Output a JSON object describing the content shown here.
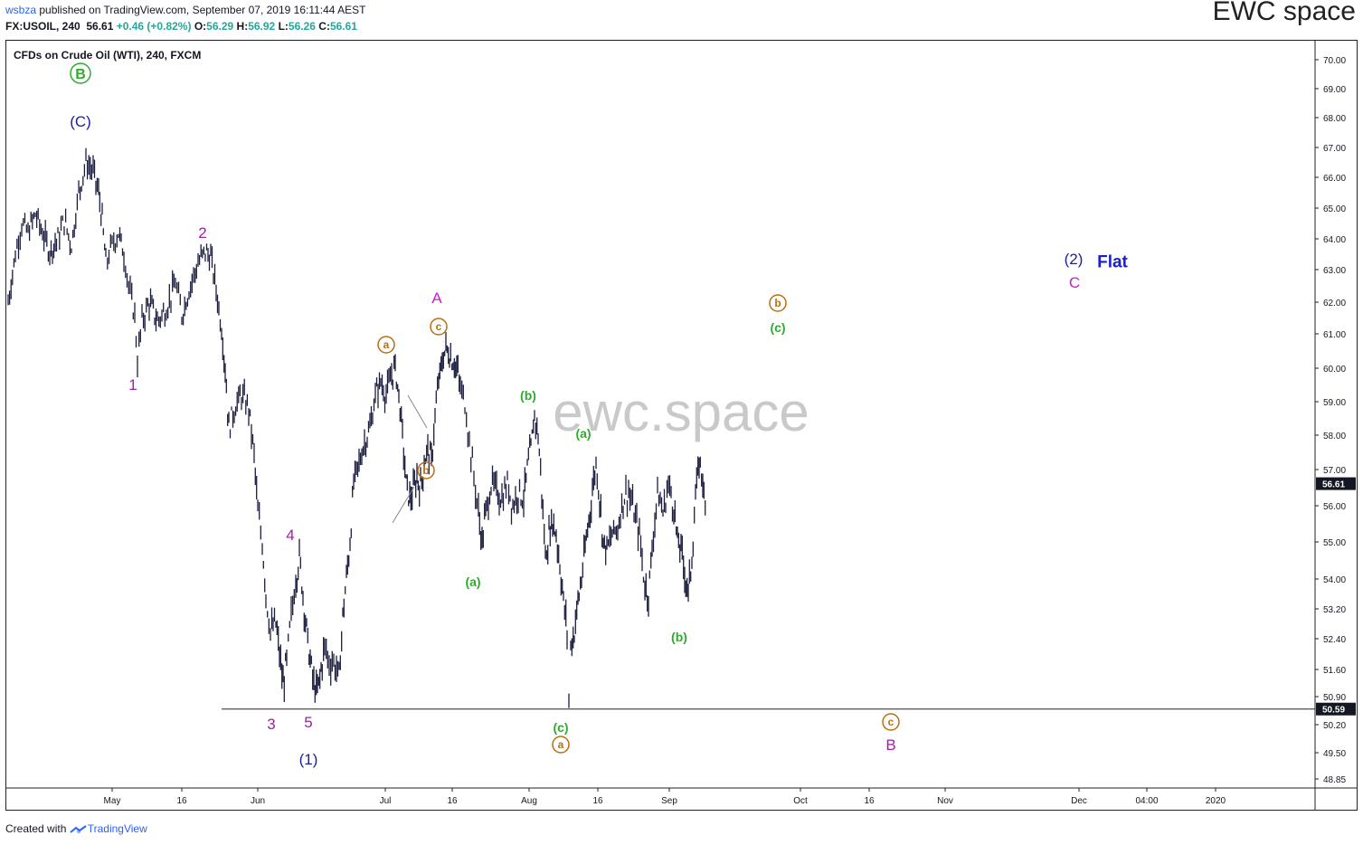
{
  "header": {
    "author": "wsbza",
    "published_text": " published on TradingView.com, September 07, 2019 16:11:44 AEST",
    "symbol_line": "FX:USOIL, 240",
    "last": "56.61",
    "change": "+0.46 (+0.82%)",
    "o_label": "O:",
    "o_value": "56.29",
    "h_label": "H:",
    "h_value": "56.92",
    "l_label": "L:",
    "l_value": "56.26",
    "c_label": "C:",
    "c_value": "56.61"
  },
  "brand": "EWC space",
  "footer": {
    "created_with": "Created with",
    "tradingview": "TradingView"
  },
  "chart_data": {
    "type": "candlestick",
    "title": "CFDs on Crude Oil (WTI), 240, FXCM",
    "watermark": "ewc.space",
    "ylim": [
      48.5,
      70.5
    ],
    "y_ticks": [
      "70.00",
      "69.00",
      "68.00",
      "67.00",
      "66.00",
      "65.00",
      "64.00",
      "63.00",
      "62.00",
      "61.00",
      "60.00",
      "59.00",
      "58.00",
      "57.00",
      "56.00",
      "55.00",
      "54.00",
      "53.20",
      "52.40",
      "51.60",
      "50.90",
      "50.20",
      "49.50",
      "48.85"
    ],
    "x_ticks": [
      "May",
      "16",
      "Jun",
      "Jul",
      "16",
      "Aug",
      "16",
      "Sep",
      "Oct",
      "16",
      "Nov",
      "Dec",
      "04:00",
      "2020"
    ],
    "price_tags": [
      {
        "value": "56.61",
        "color": "#131722"
      },
      {
        "value": "50.59",
        "color": "#131722"
      }
    ],
    "horizontal_line": {
      "value": 50.59,
      "from": "Jun",
      "to": "price axis"
    },
    "series": [
      {
        "name": "FX:USOIL",
        "type": "candlestick",
        "color": "#1b1d3f",
        "path_points": [
          [
            0,
            62.0
          ],
          [
            8,
            63.5
          ],
          [
            15,
            64.5
          ],
          [
            22,
            64.2
          ],
          [
            30,
            64.8
          ],
          [
            38,
            64.2
          ],
          [
            46,
            63.6
          ],
          [
            55,
            64.0
          ],
          [
            62,
            64.6
          ],
          [
            70,
            63.8
          ],
          [
            78,
            65.5
          ],
          [
            86,
            66.5
          ],
          [
            94,
            66.2
          ],
          [
            100,
            65.5
          ],
          [
            104,
            64.6
          ],
          [
            108,
            63.2
          ],
          [
            115,
            63.8
          ],
          [
            122,
            64.2
          ],
          [
            128,
            63.5
          ],
          [
            135,
            62.2
          ],
          [
            140,
            61.6
          ],
          [
            143,
            60.2
          ],
          [
            148,
            61.4
          ],
          [
            156,
            62.0
          ],
          [
            165,
            61.4
          ],
          [
            175,
            61.8
          ],
          [
            185,
            62.6
          ],
          [
            192,
            61.6
          ],
          [
            200,
            62.4
          ],
          [
            210,
            63.2
          ],
          [
            218,
            63.6
          ],
          [
            224,
            63.4
          ],
          [
            230,
            62.4
          ],
          [
            236,
            61.2
          ],
          [
            240,
            60.0
          ],
          [
            244,
            58.2
          ],
          [
            250,
            58.8
          ],
          [
            258,
            59.2
          ],
          [
            266,
            58.8
          ],
          [
            272,
            57.4
          ],
          [
            276,
            55.8
          ],
          [
            281,
            55.0
          ],
          [
            285,
            53.6
          ],
          [
            290,
            52.6
          ],
          [
            296,
            52.8
          ],
          [
            300,
            52.0
          ],
          [
            304,
            51.2
          ],
          [
            308,
            51.8
          ],
          [
            313,
            53.0
          ],
          [
            318,
            54.0
          ],
          [
            322,
            54.6
          ],
          [
            326,
            53.6
          ],
          [
            330,
            52.6
          ],
          [
            334,
            51.8
          ],
          [
            338,
            51.2
          ],
          [
            342,
            51.0
          ],
          [
            346,
            51.6
          ],
          [
            350,
            52.2
          ],
          [
            355,
            51.8
          ],
          [
            360,
            51.8
          ],
          [
            366,
            51.4
          ],
          [
            370,
            53.0
          ],
          [
            374,
            54.0
          ],
          [
            378,
            55.0
          ],
          [
            382,
            56.6
          ],
          [
            388,
            57.2
          ],
          [
            394,
            57.8
          ],
          [
            400,
            58.2
          ],
          [
            406,
            59.2
          ],
          [
            412,
            59.6
          ],
          [
            418,
            59.2
          ],
          [
            424,
            59.8
          ],
          [
            428,
            60.0
          ],
          [
            432,
            59.2
          ],
          [
            436,
            58.0
          ],
          [
            440,
            56.6
          ],
          [
            444,
            56.2
          ],
          [
            448,
            56.4
          ],
          [
            452,
            56.8
          ],
          [
            456,
            56.5
          ],
          [
            460,
            57.2
          ],
          [
            464,
            57.6
          ],
          [
            468,
            57.2
          ],
          [
            472,
            58.6
          ],
          [
            476,
            59.6
          ],
          [
            480,
            60.2
          ],
          [
            484,
            60.6
          ],
          [
            488,
            60.4
          ],
          [
            492,
            60.2
          ],
          [
            496,
            60.0
          ],
          [
            500,
            59.4
          ],
          [
            505,
            59.0
          ],
          [
            510,
            57.8
          ],
          [
            515,
            56.8
          ],
          [
            520,
            55.8
          ],
          [
            524,
            55.0
          ],
          [
            528,
            55.8
          ],
          [
            534,
            56.6
          ],
          [
            540,
            56.4
          ],
          [
            546,
            56.2
          ],
          [
            552,
            56.6
          ],
          [
            558,
            56.0
          ],
          [
            564,
            56.4
          ],
          [
            570,
            56.2
          ],
          [
            574,
            57.0
          ],
          [
            578,
            57.6
          ],
          [
            582,
            58.6
          ],
          [
            586,
            58.0
          ],
          [
            590,
            56.4
          ],
          [
            594,
            54.6
          ],
          [
            598,
            55.2
          ],
          [
            602,
            55.6
          ],
          [
            606,
            55.2
          ],
          [
            610,
            54.4
          ],
          [
            614,
            53.4
          ],
          [
            618,
            52.6
          ],
          [
            620,
            50.8
          ],
          [
            622,
            52.2
          ],
          [
            626,
            52.6
          ],
          [
            630,
            53.4
          ],
          [
            634,
            54.0
          ],
          [
            638,
            54.8
          ],
          [
            642,
            55.6
          ],
          [
            646,
            56.4
          ],
          [
            650,
            57.2
          ],
          [
            654,
            56.2
          ],
          [
            658,
            55.0
          ],
          [
            662,
            54.8
          ],
          [
            668,
            55.2
          ],
          [
            674,
            55.4
          ],
          [
            680,
            56.2
          ],
          [
            686,
            56.4
          ],
          [
            692,
            55.8
          ],
          [
            698,
            55.2
          ],
          [
            704,
            53.8
          ],
          [
            708,
            53.6
          ],
          [
            712,
            54.8
          ],
          [
            718,
            56.4
          ],
          [
            724,
            55.8
          ],
          [
            730,
            56.6
          ],
          [
            736,
            56.0
          ],
          [
            740,
            55.0
          ],
          [
            744,
            54.8
          ],
          [
            748,
            54.2
          ],
          [
            752,
            53.6
          ],
          [
            756,
            54.6
          ],
          [
            760,
            56.2
          ],
          [
            764,
            57.2
          ],
          [
            768,
            56.8
          ],
          [
            772,
            55.2
          ]
        ]
      }
    ],
    "annotations": [
      {
        "text": "B",
        "style": "circle",
        "color": "#2eab2e"
      },
      {
        "text": "(C)",
        "color": "#1c1fa0"
      },
      {
        "text": "1",
        "color": "#a021a0"
      },
      {
        "text": "2",
        "color": "#a021a0"
      },
      {
        "text": "3",
        "color": "#a021a0"
      },
      {
        "text": "4",
        "color": "#a021a0"
      },
      {
        "text": "5",
        "color": "#a021a0"
      },
      {
        "text": "(1)",
        "color": "#1c1fa0"
      },
      {
        "text": "a",
        "style": "circle",
        "color": "#b96f0f"
      },
      {
        "text": "b",
        "style": "circle",
        "color": "#b96f0f"
      },
      {
        "text": "c",
        "style": "circle",
        "color": "#b96f0f"
      },
      {
        "text": "A",
        "color": "#c522c5"
      },
      {
        "text": "(a)",
        "color": "#2eab2e"
      },
      {
        "text": "(b)",
        "color": "#2eab2e"
      },
      {
        "text": "(c)",
        "color": "#2eab2e"
      },
      {
        "text": "a",
        "style": "circle",
        "color": "#b96f0f"
      },
      {
        "text": "(a)",
        "color": "#2eab2e"
      },
      {
        "text": "(b)",
        "color": "#2eab2e"
      },
      {
        "text": "b",
        "style": "circle",
        "color": "#b96f0f"
      },
      {
        "text": "(c)",
        "color": "#2eab2e"
      },
      {
        "text": "c",
        "style": "circle",
        "color": "#b96f0f"
      },
      {
        "text": "B",
        "color": "#a021a0"
      },
      {
        "text": "(2)",
        "color": "#1c1fa0"
      },
      {
        "text": "C",
        "color": "#c522c5"
      },
      {
        "text": "Flat",
        "color": "#1c1fd0"
      }
    ]
  }
}
